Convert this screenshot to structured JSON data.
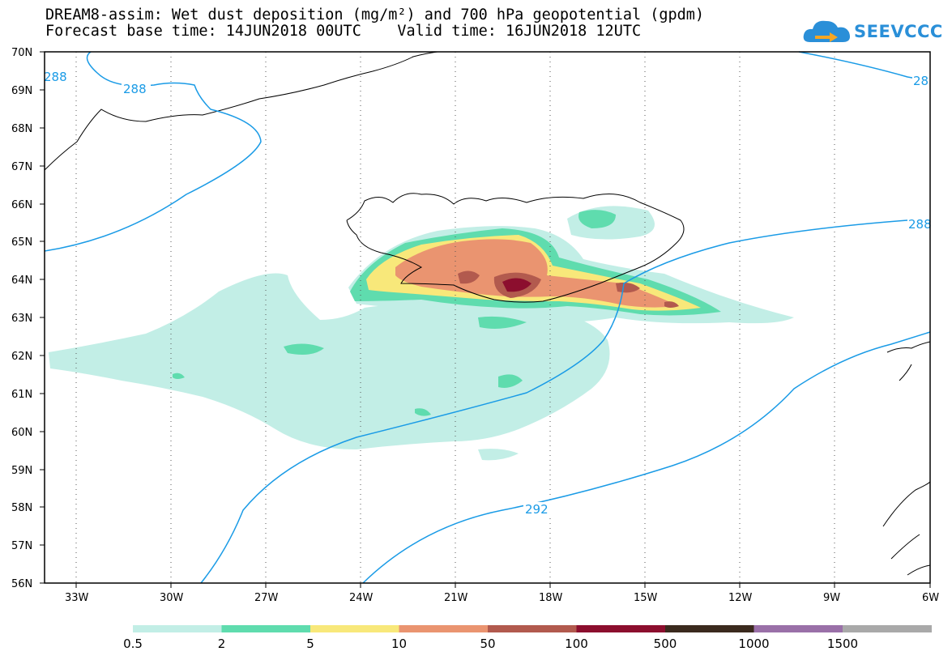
{
  "title_line1": "DREAM8-assim: Wet dust deposition (mg/m²) and 700 hPa geopotential (gpdm)",
  "title_line2": "Forecast base time: 14JUN2018 00UTC    Valid time: 16JUN2018 12UTC",
  "logo_text": "SEEVCCC",
  "logo_icon": "cloud-arrow-icon",
  "map": {
    "lon_range": [
      -34,
      -6
    ],
    "lat_range": [
      56,
      70
    ],
    "lat_labels": [
      "70N",
      "69N",
      "68N",
      "67N",
      "66N",
      "65N",
      "64N",
      "63N",
      "62N",
      "61N",
      "60N",
      "59N",
      "58N",
      "57N",
      "56N"
    ],
    "lon_labels": [
      "33W",
      "30W",
      "27W",
      "24W",
      "21W",
      "18W",
      "15W",
      "12W",
      "9W",
      "6W"
    ],
    "grid": "dotted",
    "contour_color": "#1a9be6",
    "contour_labels": [
      "288",
      "288",
      "288",
      "28",
      "292"
    ],
    "contour_levels_gpdm": [
      288,
      292
    ]
  },
  "colorbar": {
    "labels": [
      "0.5",
      "2",
      "5",
      "10",
      "50",
      "100",
      "500",
      "1000",
      "1500"
    ],
    "colors": [
      "#c2eee6",
      "#5fdcae",
      "#f8e87a",
      "#ea9470",
      "#b25a4e",
      "#8c0e2e",
      "#3b2a1e",
      "#9a70a8",
      "#a9a9a9"
    ]
  }
}
